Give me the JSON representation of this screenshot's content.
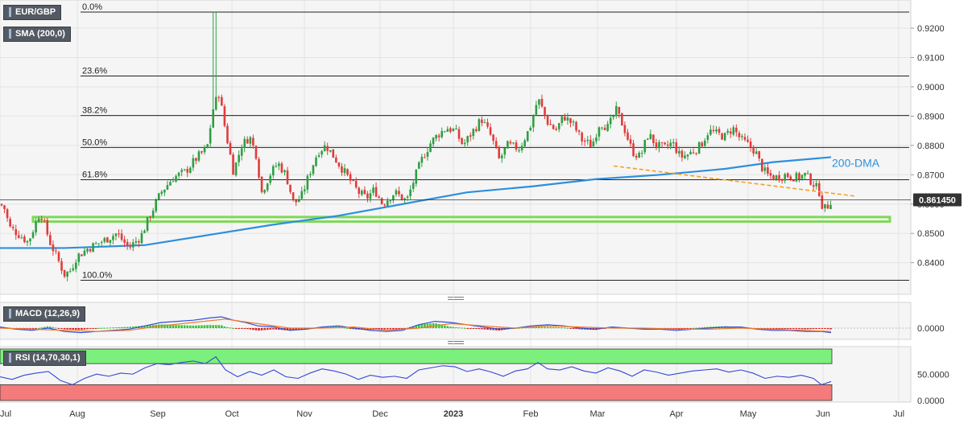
{
  "badges": {
    "pair": "EUR/GBP",
    "sma": "SMA (200,0)",
    "macd": "MACD (12,26,9)",
    "rsi": "RSI (14,70,30,1)"
  },
  "price_label": "0.861450",
  "dma_label": "200-DMA",
  "colors": {
    "up": "#2e9e43",
    "down": "#e23b3b",
    "sma": "#2d8fdd",
    "trendline": "#f5a020",
    "support": "#7ed957",
    "rsi_overbought": "#7cf07c",
    "rsi_oversold": "#f47b7b",
    "macd_line": "#3050d8",
    "signal_line": "#f07a2a"
  },
  "chart_data": [
    {
      "type": "candlestick",
      "title": "EUR/GBP",
      "x_ticks": [
        "Jul",
        "Aug",
        "Sep",
        "Oct",
        "Nov",
        "Dec",
        "2023",
        "Feb",
        "Mar",
        "Apr",
        "May",
        "Jun",
        "Jul"
      ],
      "y_ticks": [
        "0.9200",
        "0.9100",
        "0.9000",
        "0.8900",
        "0.8800",
        "0.8700",
        "0.8600",
        "0.8500",
        "0.8400"
      ],
      "ylim": [
        0.8325,
        0.9255
      ],
      "grid": true,
      "last_price": 0.86145,
      "close_anchors": [
        [
          0,
          0.86
        ],
        [
          5,
          0.859
        ],
        [
          12,
          0.852
        ],
        [
          22,
          0.85
        ],
        [
          35,
          0.847
        ],
        [
          50,
          0.8575
        ],
        [
          62,
          0.847
        ],
        [
          72,
          0.841
        ],
        [
          80,
          0.836
        ],
        [
          88,
          0.8375
        ],
        [
          95,
          0.842
        ],
        [
          110,
          0.845
        ],
        [
          125,
          0.847
        ],
        [
          145,
          0.85
        ],
        [
          160,
          0.845
        ],
        [
          175,
          0.849
        ],
        [
          186,
          0.856
        ],
        [
          200,
          0.864
        ],
        [
          215,
          0.869
        ],
        [
          230,
          0.871
        ],
        [
          245,
          0.876
        ],
        [
          257,
          0.879
        ],
        [
          265,
          0.893
        ],
        [
          272,
          0.898
        ],
        [
          280,
          0.885
        ],
        [
          290,
          0.871
        ],
        [
          300,
          0.88
        ],
        [
          310,
          0.883
        ],
        [
          318,
          0.877
        ],
        [
          325,
          0.864
        ],
        [
          335,
          0.87
        ],
        [
          345,
          0.874
        ],
        [
          355,
          0.87
        ],
        [
          365,
          0.86
        ],
        [
          375,
          0.863
        ],
        [
          385,
          0.871
        ],
        [
          395,
          0.878
        ],
        [
          405,
          0.88
        ],
        [
          415,
          0.876
        ],
        [
          425,
          0.872
        ],
        [
          435,
          0.868
        ],
        [
          445,
          0.864
        ],
        [
          455,
          0.862
        ],
        [
          465,
          0.865
        ],
        [
          475,
          0.86
        ],
        [
          490,
          0.864
        ],
        [
          505,
          0.861
        ],
        [
          515,
          0.869
        ],
        [
          525,
          0.876
        ],
        [
          535,
          0.881
        ],
        [
          545,
          0.884
        ],
        [
          555,
          0.886
        ],
        [
          565,
          0.885
        ],
        [
          575,
          0.88
        ],
        [
          585,
          0.884
        ],
        [
          598,
          0.889
        ],
        [
          610,
          0.883
        ],
        [
          620,
          0.875
        ],
        [
          630,
          0.88
        ],
        [
          645,
          0.879
        ],
        [
          658,
          0.886
        ],
        [
          668,
          0.896
        ],
        [
          680,
          0.888
        ],
        [
          690,
          0.885
        ],
        [
          700,
          0.89
        ],
        [
          712,
          0.887
        ],
        [
          722,
          0.882
        ],
        [
          735,
          0.88
        ],
        [
          745,
          0.888
        ],
        [
          755,
          0.886
        ],
        [
          765,
          0.892
        ],
        [
          775,
          0.886
        ],
        [
          785,
          0.878
        ],
        [
          795,
          0.876
        ],
        [
          805,
          0.884
        ],
        [
          815,
          0.88
        ],
        [
          825,
          0.879
        ],
        [
          835,
          0.881
        ],
        [
          845,
          0.876
        ],
        [
          855,
          0.877
        ],
        [
          870,
          0.88
        ],
        [
          880,
          0.885
        ],
        [
          890,
          0.884
        ],
        [
          900,
          0.883
        ],
        [
          910,
          0.886
        ],
        [
          920,
          0.882
        ],
        [
          930,
          0.88
        ],
        [
          938,
          0.878
        ],
        [
          945,
          0.873
        ],
        [
          952,
          0.87
        ],
        [
          962,
          0.869
        ],
        [
          975,
          0.87
        ],
        [
          990,
          0.869
        ],
        [
          1000,
          0.87
        ],
        [
          1010,
          0.867
        ],
        [
          1018,
          0.864
        ],
        [
          1022,
          0.858
        ],
        [
          1027,
          0.859
        ],
        [
          1032,
          0.86145
        ]
      ],
      "sma_200": [
        [
          0,
          0.845
        ],
        [
          80,
          0.845
        ],
        [
          180,
          0.846
        ],
        [
          260,
          0.8495
        ],
        [
          340,
          0.853
        ],
        [
          420,
          0.856
        ],
        [
          500,
          0.86
        ],
        [
          580,
          0.864
        ],
        [
          660,
          0.866
        ],
        [
          740,
          0.8685
        ],
        [
          820,
          0.87
        ],
        [
          900,
          0.872
        ],
        [
          960,
          0.8743
        ],
        [
          1032,
          0.876
        ]
      ],
      "fibonacci": [
        {
          "label": "0.0%",
          "value": 0.9255
        },
        {
          "label": "23.6%",
          "value": 0.9037
        },
        {
          "label": "38.2%",
          "value": 0.8902
        },
        {
          "label": "50.0%",
          "value": 0.8793
        },
        {
          "label": "61.8%",
          "value": 0.8683
        },
        {
          "label": "100.0%",
          "value": 0.834
        }
      ],
      "support_zone": [
        0.8543,
        0.8553
      ],
      "trendline": [
        [
          762,
          0.873
        ],
        [
          1062,
          0.8627
        ]
      ]
    },
    {
      "type": "line",
      "title": "MACD (12,26,9)",
      "y_ticks": [
        "0.0000"
      ],
      "series": [
        {
          "name": "MACD",
          "values": [
            [
              0,
              0.1
            ],
            [
              20,
              -0.1
            ],
            [
              40,
              -0.2
            ],
            [
              60,
              0.0
            ],
            [
              80,
              -0.3
            ],
            [
              100,
              -0.4
            ],
            [
              120,
              -0.3
            ],
            [
              140,
              -0.2
            ],
            [
              160,
              -0.1
            ],
            [
              180,
              0.2
            ],
            [
              200,
              0.5
            ],
            [
              220,
              0.6
            ],
            [
              240,
              0.7
            ],
            [
              260,
              0.9
            ],
            [
              275,
              1.0
            ],
            [
              290,
              0.7
            ],
            [
              305,
              0.5
            ],
            [
              320,
              0.2
            ],
            [
              340,
              0.1
            ],
            [
              360,
              -0.2
            ],
            [
              380,
              -0.1
            ],
            [
              400,
              0.1
            ],
            [
              420,
              0.2
            ],
            [
              440,
              0.0
            ],
            [
              460,
              -0.2
            ],
            [
              480,
              -0.3
            ],
            [
              500,
              -0.2
            ],
            [
              520,
              0.3
            ],
            [
              540,
              0.6
            ],
            [
              560,
              0.5
            ],
            [
              580,
              0.3
            ],
            [
              600,
              0.1
            ],
            [
              620,
              -0.1
            ],
            [
              640,
              0.0
            ],
            [
              660,
              0.2
            ],
            [
              680,
              0.3
            ],
            [
              700,
              0.2
            ],
            [
              720,
              0.0
            ],
            [
              740,
              -0.1
            ],
            [
              760,
              0.1
            ],
            [
              780,
              0.0
            ],
            [
              800,
              -0.1
            ],
            [
              820,
              -0.1
            ],
            [
              840,
              -0.2
            ],
            [
              860,
              -0.1
            ],
            [
              880,
              0.0
            ],
            [
              900,
              0.1
            ],
            [
              920,
              0.1
            ],
            [
              940,
              -0.1
            ],
            [
              960,
              -0.2
            ],
            [
              980,
              -0.2
            ],
            [
              1000,
              -0.3
            ],
            [
              1020,
              -0.3
            ],
            [
              1032,
              -0.4
            ]
          ]
        },
        {
          "name": "Signal",
          "values": [
            [
              0,
              0.0
            ],
            [
              40,
              -0.1
            ],
            [
              80,
              -0.2
            ],
            [
              120,
              -0.3
            ],
            [
              160,
              -0.2
            ],
            [
              200,
              0.2
            ],
            [
              240,
              0.5
            ],
            [
              280,
              0.8
            ],
            [
              320,
              0.4
            ],
            [
              360,
              0.0
            ],
            [
              400,
              0.0
            ],
            [
              440,
              0.1
            ],
            [
              480,
              -0.2
            ],
            [
              520,
              0.0
            ],
            [
              560,
              0.4
            ],
            [
              600,
              0.2
            ],
            [
              640,
              0.0
            ],
            [
              680,
              0.2
            ],
            [
              720,
              0.1
            ],
            [
              760,
              0.0
            ],
            [
              800,
              0.0
            ],
            [
              840,
              -0.1
            ],
            [
              880,
              -0.1
            ],
            [
              920,
              0.0
            ],
            [
              960,
              -0.1
            ],
            [
              1000,
              -0.2
            ],
            [
              1032,
              -0.3
            ]
          ]
        }
      ]
    },
    {
      "type": "line",
      "title": "RSI (14,70,30,1)",
      "y_ticks": [
        "50.0000",
        "0.0000"
      ],
      "ylim": [
        0,
        100
      ],
      "levels": [
        70,
        30
      ],
      "series": [
        {
          "name": "RSI",
          "values": [
            [
              0,
              45
            ],
            [
              15,
              40
            ],
            [
              30,
              48
            ],
            [
              45,
              52
            ],
            [
              60,
              55
            ],
            [
              75,
              38
            ],
            [
              90,
              30
            ],
            [
              105,
              42
            ],
            [
              120,
              50
            ],
            [
              135,
              46
            ],
            [
              150,
              52
            ],
            [
              165,
              50
            ],
            [
              180,
              62
            ],
            [
              195,
              70
            ],
            [
              210,
              68
            ],
            [
              225,
              72
            ],
            [
              240,
              75
            ],
            [
              255,
              70
            ],
            [
              268,
              83
            ],
            [
              280,
              58
            ],
            [
              295,
              45
            ],
            [
              310,
              55
            ],
            [
              325,
              48
            ],
            [
              340,
              58
            ],
            [
              355,
              45
            ],
            [
              370,
              42
            ],
            [
              385,
              52
            ],
            [
              400,
              60
            ],
            [
              415,
              56
            ],
            [
              430,
              50
            ],
            [
              445,
              40
            ],
            [
              460,
              48
            ],
            [
              475,
              44
            ],
            [
              490,
              46
            ],
            [
              505,
              42
            ],
            [
              520,
              58
            ],
            [
              535,
              62
            ],
            [
              550,
              66
            ],
            [
              565,
              64
            ],
            [
              580,
              55
            ],
            [
              595,
              60
            ],
            [
              610,
              54
            ],
            [
              625,
              46
            ],
            [
              640,
              56
            ],
            [
              655,
              60
            ],
            [
              668,
              72
            ],
            [
              680,
              60
            ],
            [
              695,
              58
            ],
            [
              710,
              64
            ],
            [
              725,
              56
            ],
            [
              740,
              52
            ],
            [
              755,
              62
            ],
            [
              770,
              56
            ],
            [
              785,
              46
            ],
            [
              800,
              58
            ],
            [
              815,
              54
            ],
            [
              830,
              48
            ],
            [
              845,
              52
            ],
            [
              860,
              56
            ],
            [
              875,
              58
            ],
            [
              890,
              60
            ],
            [
              905,
              54
            ],
            [
              920,
              58
            ],
            [
              935,
              52
            ],
            [
              950,
              42
            ],
            [
              965,
              46
            ],
            [
              980,
              44
            ],
            [
              995,
              48
            ],
            [
              1010,
              42
            ],
            [
              1020,
              30
            ],
            [
              1032,
              36
            ]
          ]
        }
      ]
    }
  ]
}
